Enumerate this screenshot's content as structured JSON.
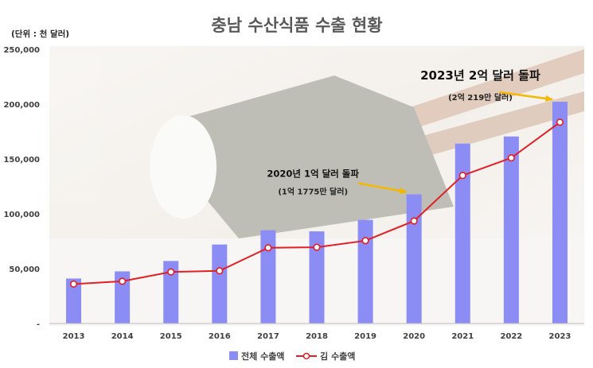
{
  "chart_data": {
    "type": "bar+line",
    "title": "충남 수산식품 수출 현황",
    "unit_label": "(단위 : 천 달러)",
    "categories": [
      "2013",
      "2014",
      "2015",
      "2016",
      "2017",
      "2018",
      "2019",
      "2020",
      "2021",
      "2022",
      "2023"
    ],
    "ylim": [
      0,
      250000
    ],
    "yticks": [
      {
        "value": 0,
        "label": "-"
      },
      {
        "value": 50000,
        "label": "50,000"
      },
      {
        "value": 100000,
        "label": "100,000"
      },
      {
        "value": 150000,
        "label": "150,000"
      },
      {
        "value": 200000,
        "label": "200,000"
      },
      {
        "value": 250000,
        "label": "250,000"
      }
    ],
    "grid": false,
    "legend_position": "bottom",
    "series": [
      {
        "name": "전체 수출액",
        "kind": "bar",
        "color": "#8c8cf5",
        "values": [
          41000,
          47500,
          57000,
          72000,
          85000,
          84000,
          94500,
          117750,
          164000,
          170500,
          202190
        ]
      },
      {
        "name": "김 수출액",
        "kind": "line",
        "color": "#e31e24",
        "values": [
          36000,
          38500,
          47000,
          48000,
          69000,
          69500,
          75500,
          93500,
          135000,
          151000,
          183500
        ]
      }
    ],
    "annotations": [
      {
        "year": "2020",
        "value": 117750,
        "headline": "2020년 1억 달러 돌파",
        "detail": "(1억 1775만 달러)"
      },
      {
        "year": "2023",
        "value": 202190,
        "headline": "2023년 2억 달러 돌파",
        "detail": "(2억 219만 달러)"
      }
    ],
    "arrow_color": "#f5b800"
  }
}
